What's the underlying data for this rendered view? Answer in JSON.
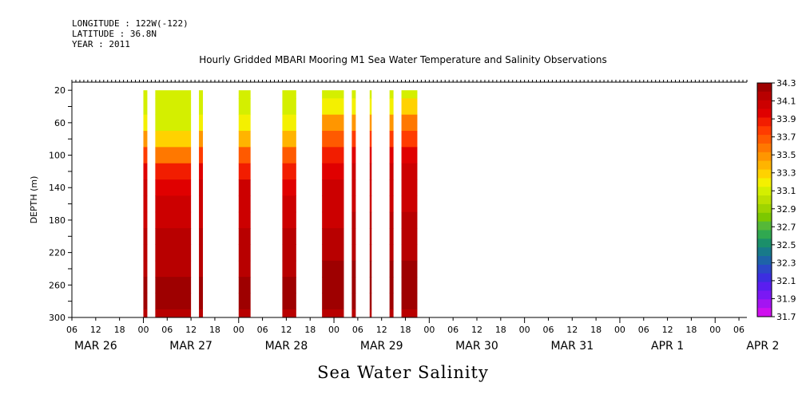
{
  "header": {
    "longitude": "LONGITUDE : 122W(-122)",
    "latitude": "LATITUDE : 36.8N",
    "year": "YEAR : 2011"
  },
  "title": "Hourly Gridded MBARI Mooring M1 Sea Water Temperature and Salinity Observations",
  "footer_title": "Sea Water Salinity",
  "chart_data": {
    "type": "heatmap",
    "title": "Hourly Gridded MBARI Mooring M1 Sea Water Temperature and Salinity Observations",
    "subtitle": "Sea Water Salinity",
    "ylabel": "DEPTH (m)",
    "xlabel": "",
    "y_reversed": true,
    "ylim": [
      300,
      10
    ],
    "y_ticks": [
      20,
      60,
      100,
      140,
      180,
      220,
      260,
      300
    ],
    "x_range_hours": [
      0,
      170
    ],
    "x_hour_ticks": [
      "06",
      "12",
      "18",
      "00",
      "06",
      "12",
      "18",
      "00",
      "06",
      "12",
      "18",
      "00",
      "06",
      "12",
      "18",
      "00",
      "06",
      "12",
      "18",
      "00",
      "06",
      "12",
      "18",
      "00",
      "06",
      "12",
      "18",
      "00",
      "06"
    ],
    "x_day_labels": [
      "MAR 26",
      "MAR 27",
      "MAR 28",
      "MAR 29",
      "MAR 30",
      "MAR 31",
      "APR 1",
      "APR 2"
    ],
    "colorbar": {
      "ticks": [
        "34.3",
        "34.1",
        "33.9",
        "33.7",
        "33.5",
        "33.3",
        "33.1",
        "32.9",
        "32.7",
        "32.5",
        "32.3",
        "32.1",
        "31.9",
        "31.7"
      ],
      "levels": [
        34.3,
        34.2,
        34.1,
        34.0,
        33.9,
        33.8,
        33.7,
        33.6,
        33.5,
        33.4,
        33.3,
        33.2,
        33.1,
        33.0,
        32.9,
        32.8,
        32.7,
        32.6,
        32.5,
        32.4,
        32.3,
        32.2,
        32.1,
        32.0,
        31.9,
        31.8,
        31.7
      ],
      "colors": [
        "#9e0000",
        "#b80000",
        "#cc0000",
        "#e00000",
        "#f21d00",
        "#ff3c00",
        "#ff5a00",
        "#ff7800",
        "#ff9600",
        "#ffb400",
        "#ffd200",
        "#f4f000",
        "#d4ef00",
        "#bde000",
        "#9fd400",
        "#7cc800",
        "#55b838",
        "#30a850",
        "#1b8f6a",
        "#187a8a",
        "#1e63a8",
        "#2c47c8",
        "#3c2ee0",
        "#5a1ef0",
        "#7a18f4",
        "#a414f2",
        "#cf10ee"
      ]
    },
    "depths": [
      20,
      40,
      60,
      80,
      100,
      120,
      140,
      160,
      180,
      200,
      220,
      240,
      260,
      280,
      300
    ],
    "segments": [
      {
        "start": 18.0,
        "end": 19.0,
        "profile": [
          33.1,
          33.1,
          33.2,
          33.5,
          33.8,
          34.0,
          34.1,
          34.1,
          34.1,
          34.2,
          34.2,
          34.2,
          34.3,
          34.3,
          34.2
        ]
      },
      {
        "start": 21.0,
        "end": 30.0,
        "profile": [
          33.1,
          33.1,
          33.1,
          33.3,
          33.6,
          33.9,
          34.0,
          34.1,
          34.1,
          34.2,
          34.2,
          34.2,
          34.3,
          34.3,
          34.2
        ]
      },
      {
        "start": 32.0,
        "end": 33.0,
        "profile": [
          33.1,
          33.1,
          33.2,
          33.5,
          33.8,
          34.0,
          34.1,
          34.1,
          34.1,
          34.2,
          34.2,
          34.2,
          34.3,
          34.3,
          34.2
        ]
      },
      {
        "start": 42.0,
        "end": 45.0,
        "profile": [
          33.1,
          33.1,
          33.2,
          33.4,
          33.7,
          33.9,
          34.1,
          34.1,
          34.1,
          34.2,
          34.2,
          34.2,
          34.3,
          34.3,
          34.2
        ]
      },
      {
        "start": 53.0,
        "end": 56.5,
        "profile": [
          33.1,
          33.1,
          33.2,
          33.4,
          33.7,
          33.9,
          34.0,
          34.1,
          34.1,
          34.2,
          34.2,
          34.2,
          34.3,
          34.3,
          34.2
        ]
      },
      {
        "start": 63.0,
        "end": 68.5,
        "profile": [
          33.1,
          33.2,
          33.5,
          33.7,
          33.9,
          34.0,
          34.1,
          34.1,
          34.1,
          34.2,
          34.2,
          34.3,
          34.3,
          34.3,
          34.2
        ]
      },
      {
        "start": 70.5,
        "end": 71.5,
        "profile": [
          33.1,
          33.2,
          33.5,
          33.8,
          34.0,
          34.1,
          34.1,
          34.1,
          34.2,
          34.2,
          34.2,
          34.3,
          34.3,
          34.3,
          34.2
        ]
      },
      {
        "start": 75.0,
        "end": 75.5,
        "profile": [
          33.1,
          33.2,
          33.5,
          33.8,
          34.0,
          34.1,
          34.1,
          34.1,
          34.2,
          34.2,
          34.2,
          34.3,
          34.3,
          34.3,
          34.2
        ]
      },
      {
        "start": 80.0,
        "end": 81.0,
        "profile": [
          33.1,
          33.2,
          33.5,
          33.8,
          34.0,
          34.1,
          34.1,
          34.1,
          34.2,
          34.2,
          34.2,
          34.3,
          34.3,
          34.3,
          34.2
        ]
      },
      {
        "start": 83.0,
        "end": 87.0,
        "profile": [
          33.1,
          33.3,
          33.6,
          33.8,
          34.0,
          34.1,
          34.1,
          34.1,
          34.2,
          34.2,
          34.2,
          34.3,
          34.3,
          34.3,
          34.2
        ]
      }
    ]
  }
}
